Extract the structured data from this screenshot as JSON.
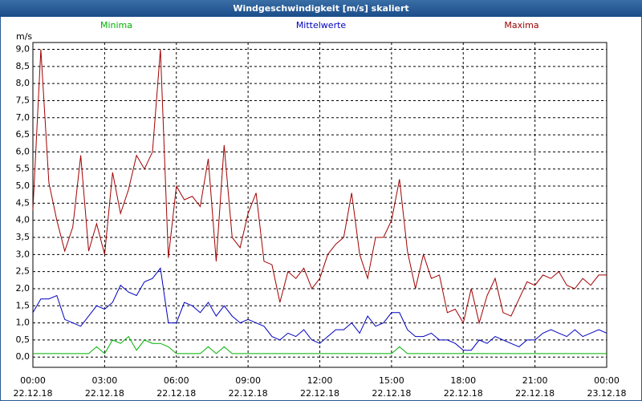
{
  "chart_data": {
    "type": "line",
    "title": "Windgeschwindigkeit [m/s] skaliert",
    "y_label": "m/s",
    "x": [
      0,
      20,
      40,
      60,
      80,
      100,
      120,
      140,
      160,
      180,
      200,
      220,
      240,
      260,
      280,
      300,
      320,
      340,
      360,
      380,
      400,
      420,
      440,
      460,
      480,
      500,
      520,
      540,
      560,
      580,
      600,
      620,
      640,
      660,
      680,
      700,
      720,
      740,
      760,
      780,
      800,
      820,
      840,
      860,
      880,
      900,
      920,
      940,
      960,
      980,
      1000,
      1020,
      1040,
      1060,
      1080,
      1100,
      1120,
      1140,
      1160,
      1180,
      1200,
      1220,
      1240,
      1260,
      1280,
      1300,
      1320,
      1340,
      1360,
      1380,
      1400,
      1420,
      1440
    ],
    "series": [
      {
        "name": "Minima",
        "color": "#00b000",
        "values": [
          0.1,
          0.1,
          0.1,
          0.1,
          0.1,
          0.1,
          0.1,
          0.1,
          0.3,
          0.1,
          0.5,
          0.4,
          0.6,
          0.2,
          0.5,
          0.4,
          0.4,
          0.3,
          0.1,
          0.1,
          0.1,
          0.1,
          0.3,
          0.1,
          0.3,
          0.1,
          0.1,
          0.1,
          0.1,
          0.1,
          0.1,
          0.1,
          0.1,
          0.1,
          0.1,
          0.1,
          0.1,
          0.1,
          0.1,
          0.1,
          0.1,
          0.1,
          0.1,
          0.1,
          0.1,
          0.1,
          0.3,
          0.1,
          0.1,
          0.1,
          0.1,
          0.1,
          0.1,
          0.1,
          0.1,
          0.1,
          0.1,
          0.1,
          0.1,
          0.1,
          0.1,
          0.1,
          0.1,
          0.1,
          0.1,
          0.1,
          0.1,
          0.1,
          0.1,
          0.1,
          0.1,
          0.1,
          0.1
        ]
      },
      {
        "name": "Mittelwerte",
        "color": "#0000c0",
        "values": [
          1.3,
          1.7,
          1.7,
          1.8,
          1.1,
          1.0,
          0.9,
          1.2,
          1.5,
          1.4,
          1.6,
          2.1,
          1.9,
          1.8,
          2.2,
          2.3,
          2.6,
          1.0,
          1.0,
          1.6,
          1.5,
          1.3,
          1.6,
          1.2,
          1.5,
          1.2,
          1.0,
          1.1,
          1.0,
          0.9,
          0.6,
          0.5,
          0.7,
          0.6,
          0.8,
          0.5,
          0.4,
          0.6,
          0.8,
          0.8,
          1.0,
          0.7,
          1.2,
          0.9,
          1.0,
          1.3,
          1.3,
          0.8,
          0.6,
          0.6,
          0.7,
          0.5,
          0.5,
          0.4,
          0.2,
          0.2,
          0.5,
          0.4,
          0.6,
          0.5,
          0.4,
          0.3,
          0.5,
          0.5,
          0.7,
          0.8,
          0.7,
          0.6,
          0.8,
          0.6,
          0.7,
          0.8,
          0.7
        ]
      },
      {
        "name": "Maxima",
        "color": "#a00000",
        "values": [
          4.3,
          9.0,
          5.1,
          4.0,
          3.1,
          3.8,
          5.9,
          3.1,
          3.9,
          3.0,
          5.4,
          4.2,
          4.9,
          5.9,
          5.5,
          6.0,
          9.0,
          2.9,
          5.0,
          4.6,
          4.7,
          4.4,
          5.8,
          2.8,
          6.2,
          3.5,
          3.2,
          4.2,
          4.8,
          2.8,
          2.7,
          1.6,
          2.5,
          2.3,
          2.6,
          2.0,
          2.3,
          3.0,
          3.3,
          3.5,
          4.8,
          3.0,
          2.3,
          3.5,
          3.5,
          4.0,
          5.2,
          3.1,
          2.0,
          3.0,
          2.3,
          2.4,
          1.3,
          1.4,
          1.0,
          2.0,
          1.0,
          1.8,
          2.3,
          1.3,
          1.2,
          1.7,
          2.2,
          2.1,
          2.4,
          2.3,
          2.5,
          2.1,
          2.0,
          2.3,
          2.1,
          2.4,
          2.4
        ]
      }
    ],
    "xlim": [
      0,
      1440
    ],
    "xticks": [
      {
        "value": 0,
        "label": "00:00",
        "date": "22.12.18"
      },
      {
        "value": 180,
        "label": "03:00",
        "date": "22.12.18"
      },
      {
        "value": 360,
        "label": "06:00",
        "date": "22.12.18"
      },
      {
        "value": 540,
        "label": "09:00",
        "date": "22.12.18"
      },
      {
        "value": 720,
        "label": "12:00",
        "date": "22.12.18"
      },
      {
        "value": 900,
        "label": "15:00",
        "date": "22.12.18"
      },
      {
        "value": 1080,
        "label": "18:00",
        "date": "22.12.18"
      },
      {
        "value": 1260,
        "label": "21:00",
        "date": "22.12.18"
      },
      {
        "value": 1440,
        "label": "00:00",
        "date": "23.12.18"
      }
    ],
    "ylim": [
      -0.3,
      9.2
    ],
    "yticks": [
      {
        "value": 0,
        "label": "0,0"
      },
      {
        "value": 0.5,
        "label": "0,5"
      },
      {
        "value": 1,
        "label": "1,0"
      },
      {
        "value": 1.5,
        "label": "1,5"
      },
      {
        "value": 2,
        "label": "2,0"
      },
      {
        "value": 2.5,
        "label": "2,5"
      },
      {
        "value": 3,
        "label": "3,0"
      },
      {
        "value": 3.5,
        "label": "3,5"
      },
      {
        "value": 4,
        "label": "4,0"
      },
      {
        "value": 4.5,
        "label": "4,5"
      },
      {
        "value": 5,
        "label": "5,0"
      },
      {
        "value": 5.5,
        "label": "5,5"
      },
      {
        "value": 6,
        "label": "6,0"
      },
      {
        "value": 6.5,
        "label": "6,5"
      },
      {
        "value": 7,
        "label": "7,0"
      },
      {
        "value": 7.5,
        "label": "7,5"
      },
      {
        "value": 8,
        "label": "8,0"
      },
      {
        "value": 8.5,
        "label": "8,5"
      },
      {
        "value": 9,
        "label": "9,0"
      }
    ],
    "grid": true
  }
}
